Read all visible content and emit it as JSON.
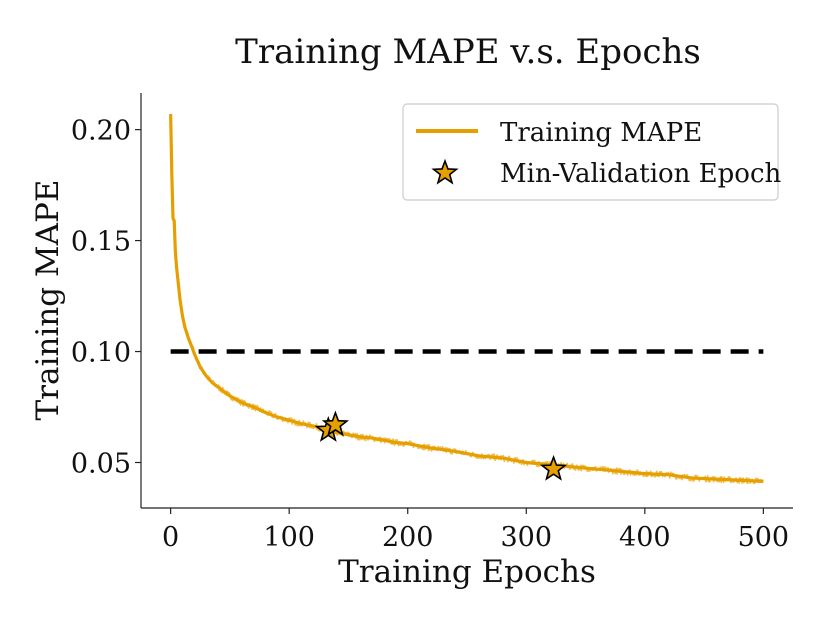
{
  "chart_data": {
    "type": "line",
    "title": "Training MAPE v.s. Epochs",
    "xlabel": "Training Epochs",
    "ylabel": "Training MAPE",
    "xlim": [
      -25,
      525
    ],
    "ylim": [
      0.0295,
      0.2165
    ],
    "x_ticks": [
      0,
      100,
      200,
      300,
      400,
      500
    ],
    "x_tick_labels": [
      "0",
      "100",
      "200",
      "300",
      "400",
      "500"
    ],
    "y_ticks": [
      0.05,
      0.1,
      0.15,
      0.2
    ],
    "y_tick_labels": [
      "0.05",
      "0.10",
      "0.15",
      "0.20"
    ],
    "grid": false,
    "legend_position": "top-right",
    "colors": {
      "line": "#E69F00",
      "line_light": "#F0B83C",
      "threshold": "#000000",
      "star_edge": "#000000"
    },
    "series": [
      {
        "name": "Training MAPE",
        "style": "line",
        "x": [
          0,
          1,
          2,
          3,
          4,
          5,
          6,
          8,
          10,
          12,
          15,
          18,
          20,
          25,
          30,
          35,
          40,
          50,
          60,
          70,
          80,
          90,
          100,
          110,
          120,
          130,
          140,
          150,
          160,
          170,
          180,
          190,
          200,
          220,
          240,
          260,
          280,
          300,
          320,
          340,
          360,
          380,
          400,
          420,
          440,
          460,
          480,
          500
        ],
        "y": [
          0.207,
          0.18,
          0.16,
          0.159,
          0.145,
          0.138,
          0.133,
          0.123,
          0.116,
          0.111,
          0.106,
          0.102,
          0.099,
          0.093,
          0.089,
          0.086,
          0.084,
          0.08,
          0.077,
          0.075,
          0.0725,
          0.0705,
          0.069,
          0.0675,
          0.0665,
          0.065,
          0.0635,
          0.0625,
          0.0615,
          0.061,
          0.06,
          0.059,
          0.0585,
          0.0565,
          0.055,
          0.053,
          0.052,
          0.05,
          0.049,
          0.048,
          0.047,
          0.046,
          0.045,
          0.0445,
          0.043,
          0.0425,
          0.042,
          0.0415
        ]
      },
      {
        "name": "Min-Validation Epoch",
        "style": "star",
        "x": [
          133,
          139,
          323
        ],
        "y": [
          0.0645,
          0.067,
          0.047
        ]
      }
    ],
    "reference_line": {
      "y": 0.1,
      "x_start": 0,
      "x_end": 500,
      "style": "dashed"
    }
  }
}
